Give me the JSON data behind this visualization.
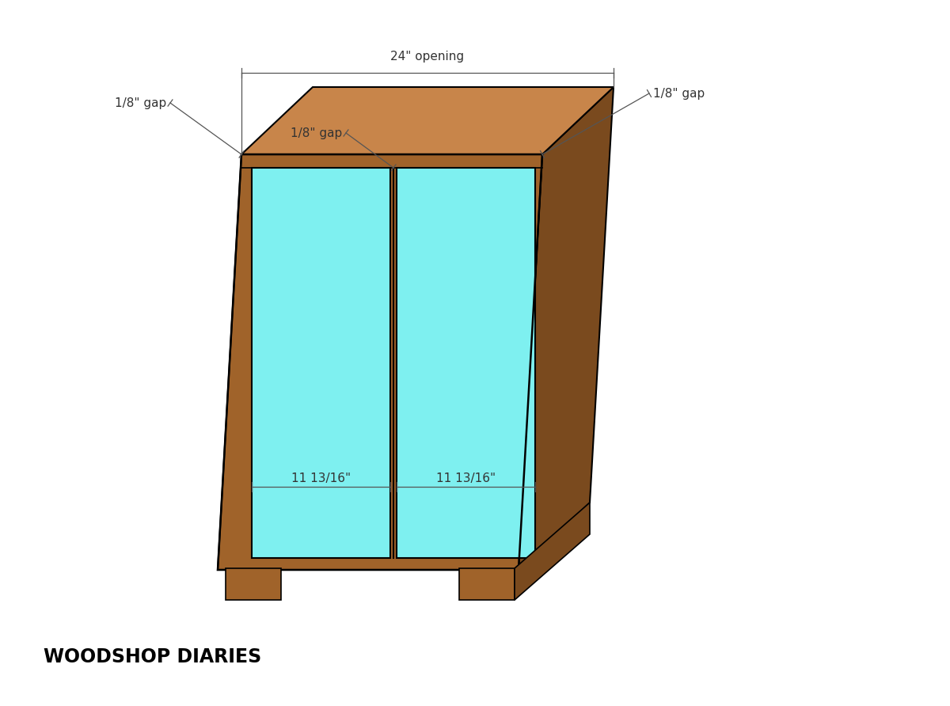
{
  "bg_color": "#ffffff",
  "wood_color": "#a0632a",
  "wood_dark": "#7a4a1e",
  "wood_light": "#c8854a",
  "door_color": "#7ef0f0",
  "line_color": "#555555",
  "text_color": "#333333",
  "font_family": "DejaVu Sans",
  "watermark": "WOODSHOP DIARIES",
  "label_opening": "24\" opening",
  "label_gap1": "1/8\" gap",
  "label_gap2": "1/8\" gap",
  "label_gap3": "1/8\" gap",
  "label_dim1": "11 13/16\"",
  "label_dim2": "11 13/16\""
}
